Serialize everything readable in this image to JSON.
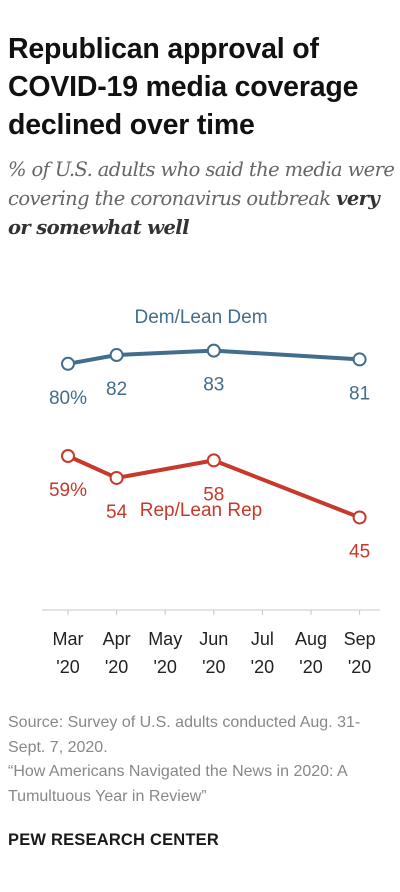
{
  "header": {
    "title": "Republican approval of COVID-19 media coverage declined over time",
    "subtitle_plain": "% of U.S. adults who said the media were covering the coronavirus outbreak ",
    "subtitle_bold": "very or somewhat well"
  },
  "footer": {
    "source": "Source: Survey of U.S. adults conducted Aug. 31-Sept. 7, 2020.",
    "report": "“How Americans Navigated the News in 2020: A Tumultuous Year in Review”",
    "brand": "PEW RESEARCH CENTER"
  },
  "chart_data": {
    "type": "line",
    "title": "Republican approval of COVID-19 media coverage declined over time",
    "subtitle": "% of U.S. adults who said the media were covering the coronavirus outbreak very or somewhat well",
    "x_ticks": [
      {
        "month": "Mar",
        "year": "'20"
      },
      {
        "month": "Apr",
        "year": "'20"
      },
      {
        "month": "May",
        "year": "'20"
      },
      {
        "month": "Jun",
        "year": "'20"
      },
      {
        "month": "Jul",
        "year": "'20"
      },
      {
        "month": "Aug",
        "year": "'20"
      },
      {
        "month": "Sep",
        "year": "'20"
      }
    ],
    "ylim": [
      0,
      100
    ],
    "grid": false,
    "legend": "inline labels",
    "series": [
      {
        "name": "Dem/Lean Dem",
        "color": "#436d8c",
        "points": [
          {
            "x": "Mar '20",
            "y": 80,
            "label": "80%"
          },
          {
            "x": "Apr '20",
            "y": 82,
            "label": "82"
          },
          {
            "x": "Jun '20",
            "y": 83,
            "label": "83"
          },
          {
            "x": "Sep '20",
            "y": 81,
            "label": "81"
          }
        ]
      },
      {
        "name": "Rep/Lean Rep",
        "color": "#c6392b",
        "points": [
          {
            "x": "Mar '20",
            "y": 59,
            "label": "59%"
          },
          {
            "x": "Apr '20",
            "y": 54,
            "label": "54"
          },
          {
            "x": "Jun '20",
            "y": 58,
            "label": "58"
          },
          {
            "x": "Sep '20",
            "y": 45,
            "label": "45"
          }
        ]
      }
    ]
  }
}
